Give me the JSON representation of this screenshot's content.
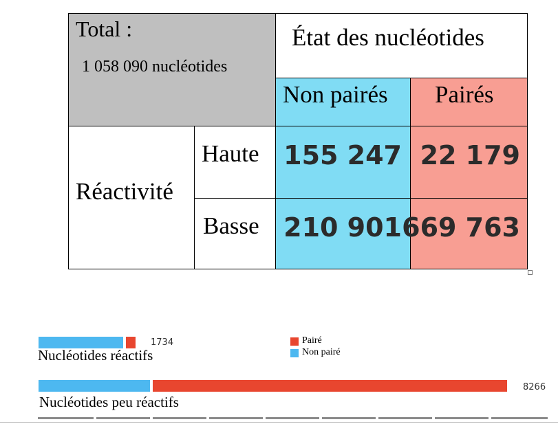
{
  "table": {
    "total_label": "Total :",
    "total_value": "1 058 090 nucléotides",
    "state_header": "État des nucléotides",
    "col_unpaired": "Non pairés",
    "col_paired": "Pairés",
    "row_group": "Réactivité",
    "row_high": "Haute",
    "row_low": "Basse",
    "high_unpaired": "155 247",
    "high_paired": "22 179",
    "low_unpaired": "210 901",
    "low_paired": "669 763"
  },
  "colors": {
    "gray": "#bfbfbf",
    "blue_cell": "#80dcf4",
    "red_cell": "#f89e93",
    "blue_bar": "#4db8f0",
    "red_bar": "#e8462f"
  },
  "legend": {
    "paired": "Pairé",
    "unpaired": "Non pairé"
  },
  "bars": {
    "reactive": {
      "label": "Nucléotides réactifs",
      "total": "1734"
    },
    "low_reactive": {
      "label": "Nucléotides peu réactifs",
      "total": "8266"
    }
  }
}
